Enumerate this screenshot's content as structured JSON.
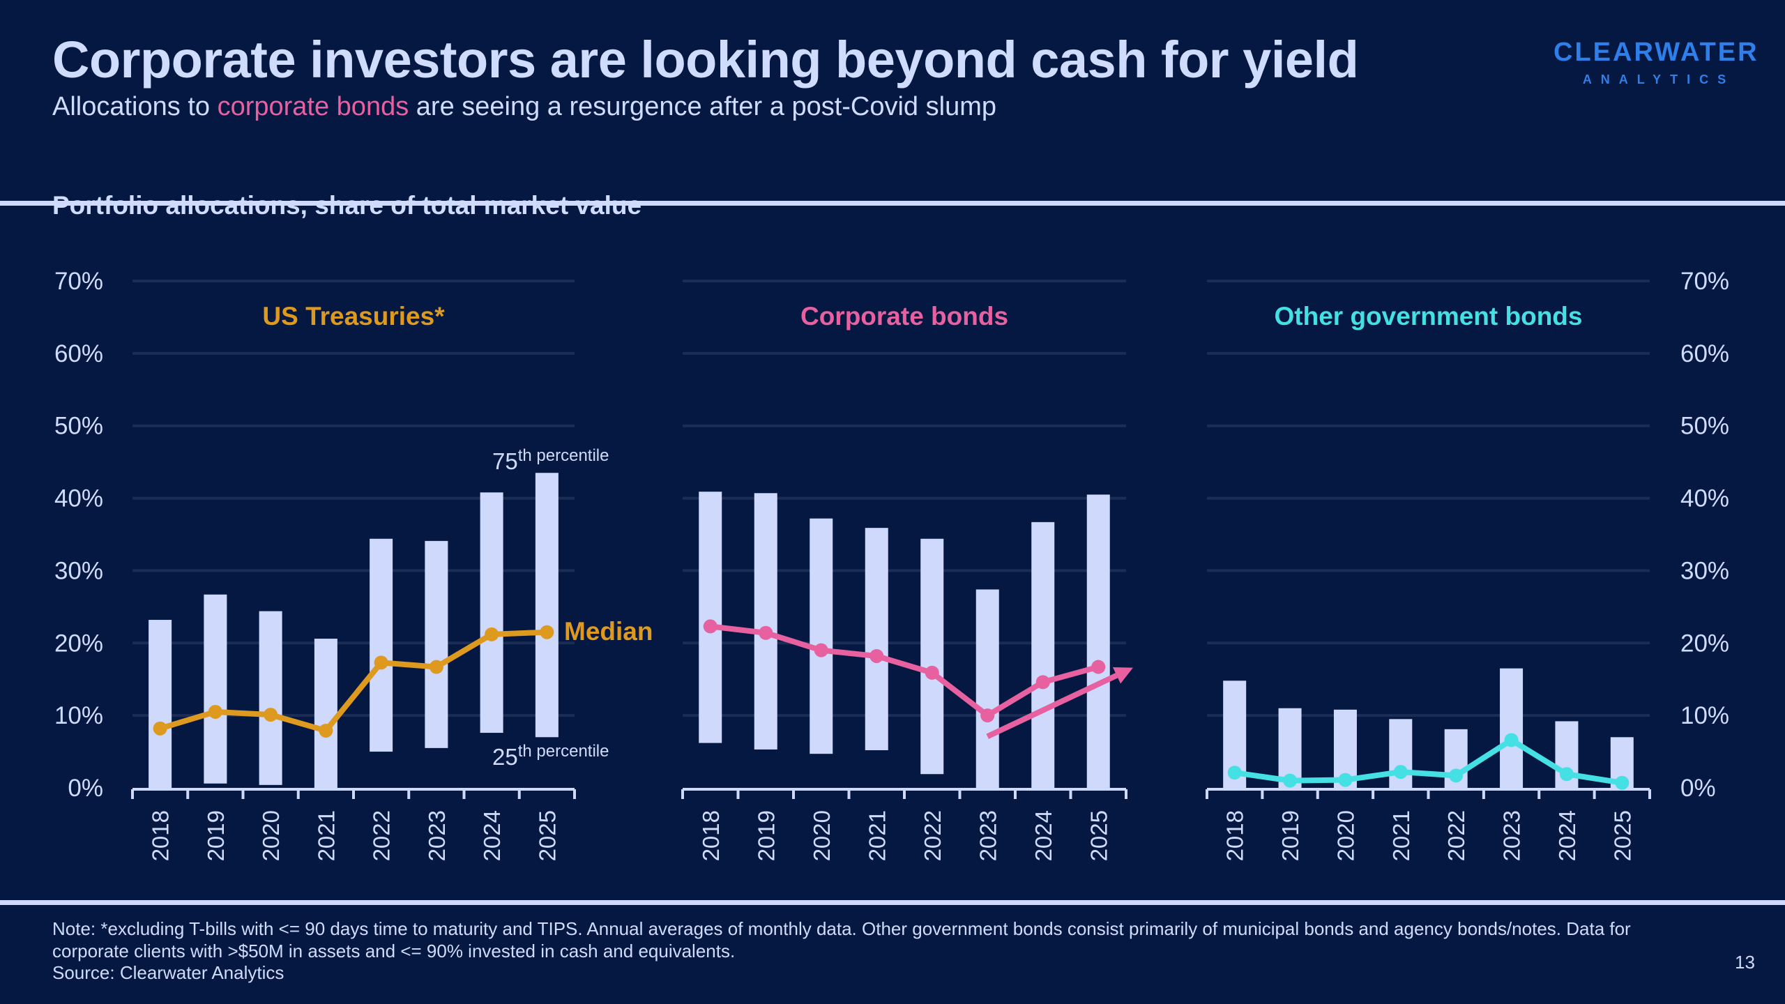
{
  "header": {
    "title": "Corporate investors are looking beyond cash for yield",
    "subtitle_prefix": "Allocations to ",
    "subtitle_highlight": "corporate bonds",
    "subtitle_suffix": " are seeing a resurgence after a post-Covid slump",
    "logo_line1": "CLEARWATER",
    "logo_line2": "ANALYTICS"
  },
  "colors": {
    "background": "#041841",
    "text": "#d0dcfd",
    "bar": "#ced9fb",
    "gridline": "#1c2d55",
    "treasuries": "#de9a1f",
    "corporate": "#e7609f",
    "other_gov": "#45e0e3",
    "logo": "#2f7fea"
  },
  "section_title": "Portfolio allocations, share of total market value",
  "annotations": {
    "p75_num": "75",
    "p75_sup": "th",
    "p75_text": " percentile",
    "p25_num": "25",
    "p25_sup": "th",
    "p25_text": " percentile",
    "median": "Median"
  },
  "chart_data": {
    "type": "bar",
    "subtype": "floating-bar (25th-75th percentile range) with median line, small multiples",
    "ylabel": "Share of total market value",
    "ylim": [
      0,
      70
    ],
    "yticks": [
      "0%",
      "10%",
      "20%",
      "30%",
      "40%",
      "50%",
      "60%",
      "70%"
    ],
    "ytick_values": [
      0,
      10,
      20,
      30,
      40,
      50,
      60,
      70
    ],
    "categories": [
      "2018",
      "2019",
      "2020",
      "2021",
      "2022",
      "2023",
      "2024",
      "2025"
    ],
    "grid": true,
    "panels": [
      {
        "title": "US Treasuries*",
        "color_key": "treasuries",
        "p25": [
          0.0,
          0.6,
          0.4,
          0.0,
          5.0,
          5.5,
          7.6,
          7.0
        ],
        "p75": [
          23.2,
          26.7,
          24.4,
          20.6,
          34.4,
          34.1,
          40.8,
          43.5
        ],
        "median": [
          8.2,
          10.5,
          10.1,
          7.9,
          17.3,
          16.7,
          21.2,
          21.5
        ]
      },
      {
        "title": "Corporate bonds",
        "color_key": "corporate",
        "p25": [
          6.2,
          5.3,
          4.7,
          5.2,
          1.9,
          0.0,
          0.0,
          0.0
        ],
        "p75": [
          40.9,
          40.7,
          37.2,
          35.9,
          34.4,
          27.4,
          36.7,
          40.5
        ],
        "median": [
          22.3,
          21.4,
          19.0,
          18.2,
          15.9,
          10.0,
          14.6,
          16.7
        ],
        "trend_arrow": {
          "from": {
            "category": "2023",
            "value": 7.1
          },
          "to": {
            "category": "after 2025",
            "value": 16.6
          }
        }
      },
      {
        "title": "Other government bonds",
        "color_key": "other_gov",
        "p25": [
          0.0,
          0.0,
          0.0,
          0.0,
          0.0,
          0.0,
          0.0,
          0.0
        ],
        "p75": [
          14.8,
          11.0,
          10.8,
          9.5,
          8.1,
          16.5,
          9.2,
          7.0
        ],
        "median": [
          2.1,
          1.0,
          1.1,
          2.2,
          1.7,
          6.6,
          1.9,
          0.7
        ]
      }
    ],
    "legend": "inline annotations on first panel (75th percentile, Median, 25th percentile)"
  },
  "footer": {
    "note": "Note: *excluding T-bills with <= 90 days time to maturity and TIPS. Annual averages of monthly data. Other government bonds consist primarily of municipal bonds and agency bonds/notes. Data for corporate clients with >$50M in assets and <= 90% invested in cash and equivalents.",
    "source": "Source: Clearwater Analytics",
    "page_number": "13"
  }
}
